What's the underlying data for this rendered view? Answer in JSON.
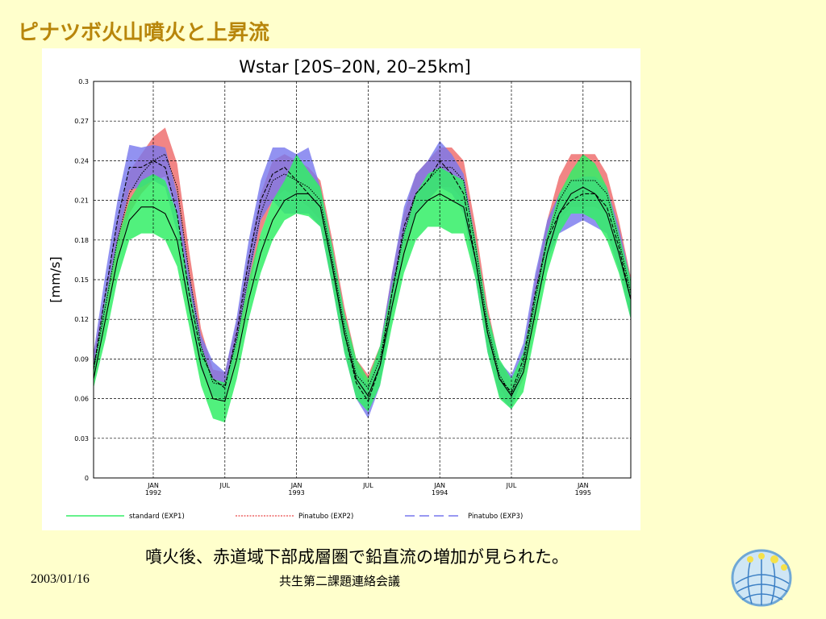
{
  "slide": {
    "title": "ピナツボ火山噴火と上昇流",
    "caption": "噴火後、赤道域下部成層圏で鉛直流の増加が見られた。",
    "footer_date": "2003/01/16",
    "footer_center": "共生第二課題連絡会議"
  },
  "chart_data": {
    "type": "line",
    "title": "Wstar [20S–20N, 20–25km]",
    "xlabel": "",
    "ylabel": "[mm/s]",
    "ylim": [
      0,
      0.3
    ],
    "yticks": [
      "0",
      "0.03",
      "0.06",
      "0.09",
      "0.12",
      "0.15",
      "0.18",
      "0.21",
      "0.24",
      "0.27",
      "0.3"
    ],
    "xlim": [
      0,
      45
    ],
    "xticks": [
      {
        "label1": "JAN",
        "label2": "1992",
        "x": 5
      },
      {
        "label1": "JUL",
        "label2": "",
        "x": 11
      },
      {
        "label1": "JAN",
        "label2": "1993",
        "x": 17
      },
      {
        "label1": "JUL",
        "label2": "",
        "x": 23
      },
      {
        "label1": "JAN",
        "label2": "1994",
        "x": 29
      },
      {
        "label1": "JUL",
        "label2": "",
        "x": 35
      },
      {
        "label1": "JAN",
        "label2": "1995",
        "x": 41
      }
    ],
    "grid": true,
    "x": [
      0,
      1,
      2,
      3,
      4,
      5,
      6,
      7,
      8,
      9,
      10,
      11,
      12,
      13,
      14,
      15,
      16,
      17,
      18,
      19,
      20,
      21,
      22,
      23,
      24,
      25,
      26,
      27,
      28,
      29,
      30,
      31,
      32,
      33,
      34,
      35,
      36,
      37,
      38,
      39,
      40,
      41,
      42,
      43,
      44,
      45
    ],
    "series": [
      {
        "name": "standard (EXP1)",
        "color": "#33ee66",
        "mean": [
          0.075,
          0.12,
          0.165,
          0.195,
          0.205,
          0.205,
          0.2,
          0.18,
          0.13,
          0.085,
          0.06,
          0.058,
          0.09,
          0.135,
          0.17,
          0.195,
          0.21,
          0.215,
          0.215,
          0.205,
          0.16,
          0.11,
          0.075,
          0.062,
          0.085,
          0.13,
          0.17,
          0.2,
          0.21,
          0.215,
          0.21,
          0.205,
          0.165,
          0.11,
          0.075,
          0.062,
          0.08,
          0.125,
          0.17,
          0.2,
          0.215,
          0.22,
          0.215,
          0.2,
          0.17,
          0.135
        ],
        "lower": [
          0.068,
          0.105,
          0.15,
          0.18,
          0.185,
          0.185,
          0.18,
          0.16,
          0.115,
          0.07,
          0.045,
          0.042,
          0.075,
          0.12,
          0.155,
          0.18,
          0.195,
          0.2,
          0.198,
          0.19,
          0.145,
          0.095,
          0.06,
          0.05,
          0.07,
          0.115,
          0.155,
          0.18,
          0.19,
          0.19,
          0.185,
          0.185,
          0.15,
          0.095,
          0.06,
          0.052,
          0.065,
          0.11,
          0.155,
          0.185,
          0.2,
          0.2,
          0.195,
          0.18,
          0.155,
          0.12
        ],
        "upper": [
          0.085,
          0.135,
          0.18,
          0.21,
          0.225,
          0.23,
          0.225,
          0.2,
          0.145,
          0.1,
          0.075,
          0.072,
          0.105,
          0.15,
          0.185,
          0.21,
          0.225,
          0.245,
          0.232,
          0.22,
          0.175,
          0.125,
          0.09,
          0.075,
          0.1,
          0.145,
          0.185,
          0.215,
          0.23,
          0.235,
          0.23,
          0.225,
          0.18,
          0.125,
          0.09,
          0.075,
          0.095,
          0.14,
          0.185,
          0.215,
          0.232,
          0.245,
          0.238,
          0.22,
          0.185,
          0.15
        ]
      },
      {
        "name": "Pinatubo (EXP2)",
        "color": "#ee6666",
        "mean": [
          0.082,
          0.13,
          0.18,
          0.215,
          0.23,
          0.24,
          0.245,
          0.22,
          0.155,
          0.1,
          0.072,
          0.07,
          0.105,
          0.155,
          0.2,
          0.225,
          0.23,
          0.225,
          0.22,
          0.21,
          0.165,
          0.115,
          0.078,
          0.068,
          0.09,
          0.14,
          0.185,
          0.215,
          0.225,
          0.235,
          0.235,
          0.225,
          0.175,
          0.115,
          0.078,
          0.063,
          0.085,
          0.135,
          0.18,
          0.21,
          0.225,
          0.225,
          0.225,
          0.215,
          0.18,
          0.14
        ],
        "lower": [
          0.072,
          0.12,
          0.165,
          0.2,
          0.215,
          0.225,
          0.228,
          0.205,
          0.14,
          0.088,
          0.062,
          0.06,
          0.095,
          0.14,
          0.185,
          0.21,
          0.218,
          0.212,
          0.205,
          0.195,
          0.15,
          0.1,
          0.068,
          0.058,
          0.08,
          0.125,
          0.17,
          0.2,
          0.21,
          0.22,
          0.22,
          0.21,
          0.16,
          0.1,
          0.068,
          0.055,
          0.075,
          0.12,
          0.168,
          0.195,
          0.205,
          0.205,
          0.205,
          0.2,
          0.165,
          0.128
        ],
        "upper": [
          0.095,
          0.142,
          0.195,
          0.232,
          0.245,
          0.258,
          0.265,
          0.238,
          0.172,
          0.113,
          0.082,
          0.08,
          0.118,
          0.17,
          0.215,
          0.24,
          0.245,
          0.24,
          0.235,
          0.225,
          0.18,
          0.13,
          0.09,
          0.078,
          0.1,
          0.155,
          0.2,
          0.23,
          0.24,
          0.25,
          0.25,
          0.24,
          0.19,
          0.13,
          0.088,
          0.072,
          0.095,
          0.15,
          0.195,
          0.228,
          0.245,
          0.245,
          0.245,
          0.23,
          0.195,
          0.152
        ]
      },
      {
        "name": "Pinatubo (EXP3)",
        "color": "#7777ee",
        "mean": [
          0.082,
          0.14,
          0.195,
          0.235,
          0.235,
          0.24,
          0.235,
          0.2,
          0.14,
          0.095,
          0.075,
          0.068,
          0.11,
          0.165,
          0.21,
          0.23,
          0.235,
          0.225,
          0.215,
          0.205,
          0.16,
          0.11,
          0.072,
          0.058,
          0.085,
          0.14,
          0.19,
          0.215,
          0.225,
          0.24,
          0.23,
          0.215,
          0.165,
          0.11,
          0.075,
          0.065,
          0.09,
          0.14,
          0.18,
          0.2,
          0.21,
          0.215,
          0.215,
          0.205,
          0.175,
          0.135
        ],
        "lower": [
          0.072,
          0.125,
          0.18,
          0.218,
          0.22,
          0.225,
          0.22,
          0.185,
          0.125,
          0.082,
          0.062,
          0.058,
          0.098,
          0.15,
          0.195,
          0.21,
          0.2,
          0.2,
          0.2,
          0.19,
          0.145,
          0.095,
          0.06,
          0.045,
          0.07,
          0.125,
          0.175,
          0.2,
          0.21,
          0.22,
          0.215,
          0.2,
          0.15,
          0.095,
          0.062,
          0.052,
          0.078,
          0.125,
          0.165,
          0.185,
          0.19,
          0.195,
          0.19,
          0.185,
          0.158,
          0.12
        ],
        "upper": [
          0.095,
          0.155,
          0.21,
          0.252,
          0.25,
          0.252,
          0.25,
          0.215,
          0.155,
          0.108,
          0.088,
          0.08,
          0.122,
          0.18,
          0.225,
          0.25,
          0.25,
          0.245,
          0.25,
          0.22,
          0.175,
          0.125,
          0.085,
          0.07,
          0.1,
          0.155,
          0.205,
          0.23,
          0.24,
          0.255,
          0.245,
          0.23,
          0.18,
          0.125,
          0.088,
          0.078,
          0.102,
          0.155,
          0.195,
          0.215,
          0.225,
          0.228,
          0.228,
          0.22,
          0.19,
          0.15
        ]
      }
    ],
    "legend_position": "bottom"
  }
}
